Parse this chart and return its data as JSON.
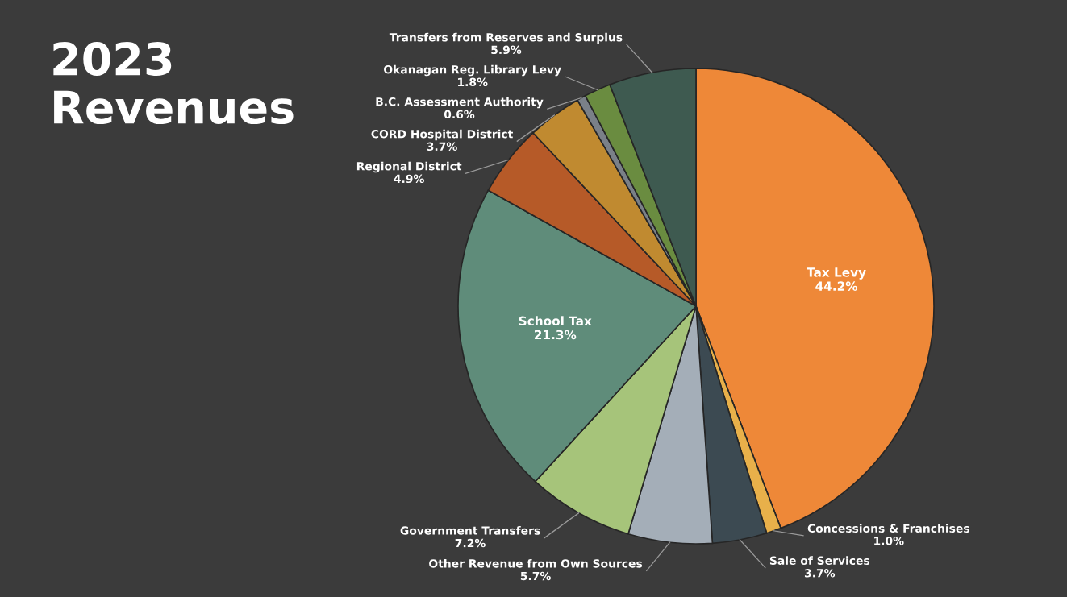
{
  "chart_data": {
    "type": "pie",
    "title": "2023\nRevenues",
    "categories": [
      "Tax Levy",
      "Concessions & Franchises",
      "Sale of Services",
      "Other Revenue from Own Sources",
      "Government Transfers",
      "School Tax",
      "Regional District",
      "CORD Hospital District",
      "B.C. Assessment Authority",
      "Okanagan Reg. Library Levy",
      "Transfers from Reserves and Surplus"
    ],
    "values": [
      44.2,
      1.0,
      3.7,
      5.7,
      7.2,
      21.3,
      4.9,
      3.7,
      0.6,
      1.8,
      5.9
    ],
    "colors": [
      "#ee8838",
      "#e8b04a",
      "#3c4a52",
      "#a4aeb8",
      "#a6c47a",
      "#5f8c7a",
      "#b65a28",
      "#c08a30",
      "#7a8088",
      "#6a8c40",
      "#3e5a50"
    ],
    "value_labels": [
      "44.2%",
      "1.0%",
      "3.7%",
      "5.7%",
      "7.2%",
      "21.3%",
      "4.9%",
      "3.7%",
      "0.6%",
      "1.8%",
      "5.9%"
    ]
  }
}
